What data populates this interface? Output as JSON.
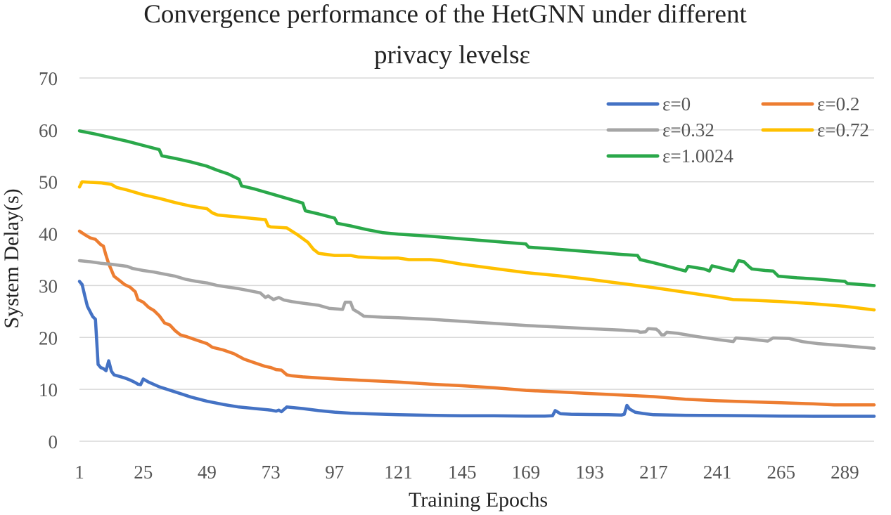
{
  "chart_data": {
    "type": "line",
    "title_line1": "Convergence performance of the HetGNN under different",
    "title_line2": "privacy levelsε",
    "xlabel": "Training Epochs",
    "ylabel": "System Delay(s)",
    "ylim": [
      0,
      70
    ],
    "xlim": [
      1,
      300
    ],
    "grid": true,
    "legend_position": "top-right",
    "x_ticks": [
      1,
      25,
      49,
      73,
      97,
      121,
      145,
      169,
      193,
      217,
      241,
      265,
      289
    ],
    "y_ticks": [
      0,
      10,
      20,
      30,
      40,
      50,
      60,
      70
    ],
    "series": [
      {
        "name": "ε=0",
        "color": "#4472C4",
        "points": [
          [
            1,
            30.8
          ],
          [
            2,
            30.2
          ],
          [
            3,
            28
          ],
          [
            4,
            26
          ],
          [
            5,
            25
          ],
          [
            6,
            24
          ],
          [
            7,
            23.5
          ],
          [
            8,
            14.8
          ],
          [
            9,
            14.2
          ],
          [
            10,
            14
          ],
          [
            11,
            13.6
          ],
          [
            12,
            15.5
          ],
          [
            13,
            13.5
          ],
          [
            14,
            12.8
          ],
          [
            16,
            12.5
          ],
          [
            18,
            12.2
          ],
          [
            20,
            11.8
          ],
          [
            22,
            11.3
          ],
          [
            23,
            11
          ],
          [
            24,
            10.9
          ],
          [
            25,
            12
          ],
          [
            27,
            11.4
          ],
          [
            31,
            10.5
          ],
          [
            37,
            9.5
          ],
          [
            43,
            8.5
          ],
          [
            49,
            7.7
          ],
          [
            55,
            7.1
          ],
          [
            61,
            6.6
          ],
          [
            67,
            6.3
          ],
          [
            73,
            6
          ],
          [
            75,
            5.8
          ],
          [
            76,
            6
          ],
          [
            77,
            5.7
          ],
          [
            79,
            6.6
          ],
          [
            81,
            6.5
          ],
          [
            85,
            6.3
          ],
          [
            91,
            5.9
          ],
          [
            97,
            5.6
          ],
          [
            103,
            5.4
          ],
          [
            109,
            5.3
          ],
          [
            121,
            5.1
          ],
          [
            133,
            5
          ],
          [
            145,
            4.9
          ],
          [
            157,
            4.9
          ],
          [
            169,
            4.85
          ],
          [
            176,
            4.85
          ],
          [
            179,
            4.9
          ],
          [
            180,
            5.9
          ],
          [
            181,
            5.6
          ],
          [
            182,
            5.3
          ],
          [
            186,
            5.2
          ],
          [
            193,
            5.15
          ],
          [
            200,
            5.1
          ],
          [
            205,
            5.05
          ],
          [
            206,
            5.2
          ],
          [
            207,
            6.9
          ],
          [
            208,
            6.2
          ],
          [
            210,
            5.6
          ],
          [
            213,
            5.35
          ],
          [
            217,
            5.1
          ],
          [
            229,
            5
          ],
          [
            241,
            4.95
          ],
          [
            253,
            4.9
          ],
          [
            265,
            4.85
          ],
          [
            277,
            4.8
          ],
          [
            289,
            4.8
          ],
          [
            300,
            4.8
          ]
        ]
      },
      {
        "name": "ε=0.2",
        "color": "#ED7D31",
        "points": [
          [
            1,
            40.5
          ],
          [
            3,
            39.8
          ],
          [
            5,
            39.2
          ],
          [
            7,
            38.9
          ],
          [
            9,
            37.9
          ],
          [
            10,
            37.6
          ],
          [
            11,
            35.8
          ],
          [
            12,
            34.2
          ],
          [
            13,
            33
          ],
          [
            14,
            31.8
          ],
          [
            16,
            31
          ],
          [
            18,
            30.2
          ],
          [
            20,
            29.7
          ],
          [
            22,
            28.8
          ],
          [
            23,
            27.3
          ],
          [
            25,
            26.8
          ],
          [
            27,
            25.8
          ],
          [
            29,
            25.2
          ],
          [
            31,
            24.2
          ],
          [
            33,
            22.8
          ],
          [
            35,
            22.4
          ],
          [
            37,
            21.3
          ],
          [
            39,
            20.5
          ],
          [
            41,
            20.2
          ],
          [
            45,
            19.5
          ],
          [
            49,
            18.8
          ],
          [
            51,
            18.1
          ],
          [
            55,
            17.6
          ],
          [
            59,
            16.9
          ],
          [
            63,
            15.8
          ],
          [
            67,
            15.1
          ],
          [
            71,
            14.4
          ],
          [
            73,
            14.2
          ],
          [
            75,
            13.8
          ],
          [
            77,
            13.7
          ],
          [
            79,
            12.8
          ],
          [
            81,
            12.6
          ],
          [
            85,
            12.4
          ],
          [
            91,
            12.2
          ],
          [
            97,
            12
          ],
          [
            109,
            11.7
          ],
          [
            121,
            11.4
          ],
          [
            133,
            11
          ],
          [
            145,
            10.7
          ],
          [
            157,
            10.3
          ],
          [
            169,
            9.8
          ],
          [
            181,
            9.5
          ],
          [
            193,
            9.2
          ],
          [
            205,
            8.9
          ],
          [
            217,
            8.6
          ],
          [
            229,
            8.1
          ],
          [
            241,
            7.8
          ],
          [
            253,
            7.6
          ],
          [
            265,
            7.4
          ],
          [
            277,
            7.2
          ],
          [
            285,
            7
          ],
          [
            300,
            7
          ]
        ]
      },
      {
        "name": "ε=0.32",
        "color": "#A5A5A5",
        "points": [
          [
            1,
            34.8
          ],
          [
            5,
            34.6
          ],
          [
            9,
            34.3
          ],
          [
            13,
            34.1
          ],
          [
            19,
            33.7
          ],
          [
            21,
            33.3
          ],
          [
            25,
            32.9
          ],
          [
            29,
            32.6
          ],
          [
            33,
            32.2
          ],
          [
            37,
            31.8
          ],
          [
            41,
            31.2
          ],
          [
            45,
            30.8
          ],
          [
            49,
            30.5
          ],
          [
            53,
            30
          ],
          [
            57,
            29.7
          ],
          [
            61,
            29.4
          ],
          [
            65,
            29
          ],
          [
            69,
            28.6
          ],
          [
            71,
            27.7
          ],
          [
            72,
            28
          ],
          [
            74,
            27.3
          ],
          [
            76,
            27.7
          ],
          [
            78,
            27.2
          ],
          [
            81,
            26.9
          ],
          [
            85,
            26.6
          ],
          [
            91,
            26.2
          ],
          [
            95,
            25.6
          ],
          [
            100,
            25.4
          ],
          [
            101,
            26.8
          ],
          [
            103,
            26.8
          ],
          [
            104,
            25.4
          ],
          [
            106,
            24.8
          ],
          [
            108,
            24.1
          ],
          [
            115,
            23.9
          ],
          [
            121,
            23.8
          ],
          [
            133,
            23.5
          ],
          [
            145,
            23.1
          ],
          [
            157,
            22.7
          ],
          [
            169,
            22.3
          ],
          [
            181,
            22
          ],
          [
            193,
            21.7
          ],
          [
            205,
            21.4
          ],
          [
            211,
            21.2
          ],
          [
            212,
            21
          ],
          [
            214,
            21.1
          ],
          [
            215,
            21.7
          ],
          [
            218,
            21.6
          ],
          [
            219,
            21.2
          ],
          [
            220,
            20.5
          ],
          [
            221,
            20.5
          ],
          [
            222,
            21
          ],
          [
            226,
            20.8
          ],
          [
            233,
            20.2
          ],
          [
            241,
            19.6
          ],
          [
            247,
            19.2
          ],
          [
            248,
            19.9
          ],
          [
            253,
            19.7
          ],
          [
            260,
            19.3
          ],
          [
            262,
            19.9
          ],
          [
            268,
            19.8
          ],
          [
            273,
            19.2
          ],
          [
            279,
            18.8
          ],
          [
            289,
            18.4
          ],
          [
            300,
            17.9
          ]
        ]
      },
      {
        "name": "ε=0.72",
        "color": "#FFC000",
        "points": [
          [
            1,
            49
          ],
          [
            2,
            50
          ],
          [
            5,
            49.9
          ],
          [
            9,
            49.8
          ],
          [
            13,
            49.5
          ],
          [
            15,
            48.9
          ],
          [
            19,
            48.4
          ],
          [
            25,
            47.5
          ],
          [
            31,
            46.8
          ],
          [
            37,
            46
          ],
          [
            43,
            45.3
          ],
          [
            49,
            44.8
          ],
          [
            51,
            44
          ],
          [
            53,
            43.6
          ],
          [
            57,
            43.4
          ],
          [
            61,
            43.2
          ],
          [
            67,
            42.9
          ],
          [
            71,
            42.7
          ],
          [
            72,
            41.5
          ],
          [
            73,
            41.3
          ],
          [
            79,
            41.1
          ],
          [
            83,
            39.8
          ],
          [
            87,
            38.3
          ],
          [
            89,
            37
          ],
          [
            91,
            36.2
          ],
          [
            97,
            35.8
          ],
          [
            103,
            35.8
          ],
          [
            106,
            35.5
          ],
          [
            115,
            35.3
          ],
          [
            121,
            35.3
          ],
          [
            125,
            35
          ],
          [
            133,
            35
          ],
          [
            137,
            34.8
          ],
          [
            145,
            34.1
          ],
          [
            157,
            33.3
          ],
          [
            169,
            32.5
          ],
          [
            181,
            31.9
          ],
          [
            193,
            31.2
          ],
          [
            205,
            30.4
          ],
          [
            217,
            29.6
          ],
          [
            229,
            28.7
          ],
          [
            241,
            27.8
          ],
          [
            247,
            27.3
          ],
          [
            253,
            27.2
          ],
          [
            265,
            26.9
          ],
          [
            277,
            26.5
          ],
          [
            289,
            26
          ],
          [
            300,
            25.3
          ]
        ]
      },
      {
        "name": "ε=1.0024",
        "color": "#2AA84A",
        "points": [
          [
            1,
            59.8
          ],
          [
            7,
            59.2
          ],
          [
            13,
            58.5
          ],
          [
            19,
            57.8
          ],
          [
            25,
            57
          ],
          [
            31,
            56.2
          ],
          [
            32,
            55
          ],
          [
            37,
            54.5
          ],
          [
            43,
            53.8
          ],
          [
            49,
            53
          ],
          [
            53,
            52.2
          ],
          [
            57,
            51.5
          ],
          [
            61,
            50.5
          ],
          [
            62,
            49.2
          ],
          [
            67,
            48.6
          ],
          [
            73,
            47.7
          ],
          [
            79,
            46.8
          ],
          [
            85,
            45.9
          ],
          [
            86,
            44.4
          ],
          [
            91,
            43.8
          ],
          [
            97,
            43
          ],
          [
            98,
            42
          ],
          [
            103,
            41.5
          ],
          [
            109,
            40.8
          ],
          [
            115,
            40.2
          ],
          [
            121,
            39.9
          ],
          [
            133,
            39.5
          ],
          [
            145,
            39
          ],
          [
            157,
            38.5
          ],
          [
            169,
            38
          ],
          [
            170,
            37.4
          ],
          [
            181,
            37
          ],
          [
            193,
            36.5
          ],
          [
            205,
            36
          ],
          [
            211,
            35.8
          ],
          [
            212,
            35
          ],
          [
            217,
            34.4
          ],
          [
            223,
            33.6
          ],
          [
            229,
            32.8
          ],
          [
            230,
            33.7
          ],
          [
            236,
            33.2
          ],
          [
            238,
            32.8
          ],
          [
            239,
            33.8
          ],
          [
            247,
            32.8
          ],
          [
            249,
            34.8
          ],
          [
            251,
            34.6
          ],
          [
            253,
            33.6
          ],
          [
            254,
            33.2
          ],
          [
            259,
            32.9
          ],
          [
            262,
            32.8
          ],
          [
            264,
            31.8
          ],
          [
            271,
            31.5
          ],
          [
            277,
            31.3
          ],
          [
            289,
            30.8
          ],
          [
            290,
            30.4
          ],
          [
            300,
            30
          ]
        ]
      }
    ]
  }
}
